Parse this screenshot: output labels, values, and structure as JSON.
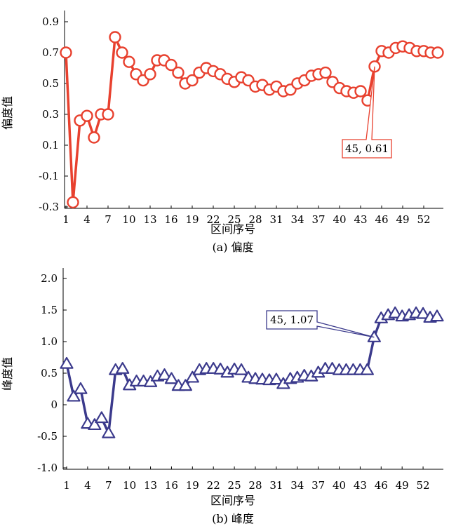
{
  "chart_data": [
    {
      "type": "line",
      "caption": "(a) 偏度",
      "xlabel": "区间序号",
      "ylabel": "偏度值",
      "color": "#e8412f",
      "marker": "circle",
      "ylim": [
        -0.3,
        0.9
      ],
      "yticks": [
        -0.3,
        -0.1,
        0.1,
        0.3,
        0.5,
        0.7,
        0.9
      ],
      "yticklabels": [
        "-0.3",
        "-0.1",
        "0.1",
        "0.3",
        "0.5",
        "0.7",
        "0.9"
      ],
      "xticks": [
        1,
        4,
        7,
        10,
        13,
        16,
        19,
        22,
        25,
        28,
        31,
        34,
        37,
        40,
        43,
        46,
        49,
        52
      ],
      "xticklabels": [
        "1",
        "4",
        "7",
        "10",
        "13",
        "16",
        "19",
        "22",
        "25",
        "28",
        "31",
        "34",
        "37",
        "40",
        "43",
        "46",
        "49",
        "52"
      ],
      "x": [
        1,
        2,
        3,
        4,
        5,
        6,
        7,
        8,
        9,
        10,
        11,
        12,
        13,
        14,
        15,
        16,
        17,
        18,
        19,
        20,
        21,
        22,
        23,
        24,
        25,
        26,
        27,
        28,
        29,
        30,
        31,
        32,
        33,
        34,
        35,
        36,
        37,
        38,
        39,
        40,
        41,
        42,
        43,
        44,
        45,
        46,
        47,
        48,
        49,
        50,
        51,
        52,
        53,
        54
      ],
      "y": [
        0.7,
        -0.27,
        0.26,
        0.29,
        0.15,
        0.3,
        0.3,
        0.8,
        0.7,
        0.64,
        0.56,
        0.52,
        0.56,
        0.65,
        0.65,
        0.62,
        0.57,
        0.5,
        0.52,
        0.57,
        0.6,
        0.58,
        0.56,
        0.53,
        0.51,
        0.54,
        0.52,
        0.48,
        0.49,
        0.46,
        0.48,
        0.45,
        0.46,
        0.5,
        0.52,
        0.55,
        0.56,
        0.57,
        0.51,
        0.47,
        0.45,
        0.44,
        0.45,
        0.39,
        0.61,
        0.71,
        0.7,
        0.73,
        0.74,
        0.73,
        0.71,
        0.71,
        0.7,
        0.7
      ],
      "annotation": {
        "text": "45, 0.61",
        "x": 45,
        "y": 0.61
      }
    },
    {
      "type": "line",
      "caption": "(b) 峰度",
      "xlabel": "区间序号",
      "ylabel": "峰度值",
      "color": "#3b3a8c",
      "marker": "triangle",
      "ylim": [
        -1.0,
        2.0
      ],
      "yticks": [
        -1.0,
        -0.5,
        0,
        0.5,
        1.0,
        1.5,
        2.0
      ],
      "yticklabels": [
        "-1.0",
        "-0.5",
        "0",
        "0.5",
        "1.0",
        "1.5",
        "2.0"
      ],
      "xticks": [
        1,
        4,
        7,
        10,
        13,
        16,
        19,
        22,
        25,
        28,
        31,
        34,
        37,
        40,
        43,
        46,
        49,
        52
      ],
      "xticklabels": [
        "1",
        "4",
        "7",
        "10",
        "13",
        "16",
        "19",
        "22",
        "25",
        "28",
        "31",
        "34",
        "37",
        "40",
        "43",
        "46",
        "49",
        "52"
      ],
      "x": [
        1,
        2,
        3,
        4,
        5,
        6,
        7,
        8,
        9,
        10,
        11,
        12,
        13,
        14,
        15,
        16,
        17,
        18,
        19,
        20,
        21,
        22,
        23,
        24,
        25,
        26,
        27,
        28,
        29,
        30,
        31,
        32,
        33,
        34,
        35,
        36,
        37,
        38,
        39,
        40,
        41,
        42,
        43,
        44,
        45,
        46,
        47,
        48,
        49,
        50,
        51,
        52,
        53,
        54
      ],
      "y": [
        0.65,
        0.13,
        0.25,
        -0.3,
        -0.32,
        -0.21,
        -0.45,
        0.55,
        0.57,
        0.31,
        0.37,
        0.37,
        0.36,
        0.45,
        0.47,
        0.41,
        0.3,
        0.3,
        0.43,
        0.55,
        0.57,
        0.57,
        0.56,
        0.51,
        0.56,
        0.55,
        0.43,
        0.41,
        0.4,
        0.39,
        0.4,
        0.33,
        0.41,
        0.43,
        0.46,
        0.45,
        0.51,
        0.57,
        0.57,
        0.55,
        0.55,
        0.55,
        0.55,
        0.55,
        1.07,
        1.37,
        1.42,
        1.45,
        1.4,
        1.42,
        1.45,
        1.44,
        1.38,
        1.4
      ],
      "annotation": {
        "text": "45, 1.07",
        "x": 45,
        "y": 1.07
      }
    }
  ]
}
